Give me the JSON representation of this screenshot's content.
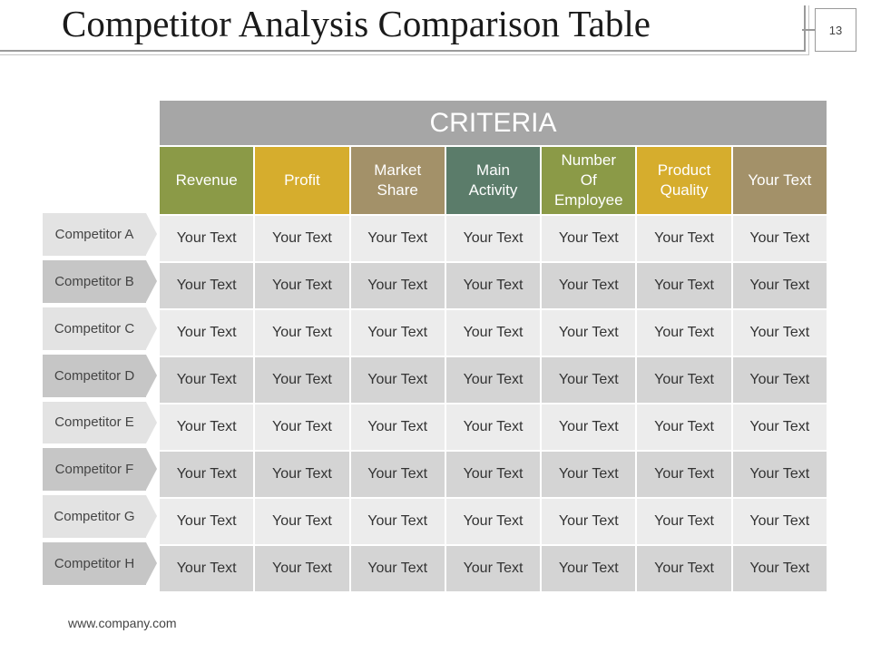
{
  "slide": {
    "title": "Competitor Analysis Comparison Table",
    "page_number": "13",
    "footer": "www.company.com"
  },
  "table": {
    "group_header": "CRITERIA",
    "columns": [
      {
        "label": "Revenue",
        "color": "#8b9a47"
      },
      {
        "label": "Profit",
        "color": "#d6ad2d"
      },
      {
        "label": "Market\nShare",
        "color": "#a39169"
      },
      {
        "label": "Main\nActivity",
        "color": "#5b7c6a"
      },
      {
        "label": "Number\nOf\nEmployee",
        "color": "#8b9a47"
      },
      {
        "label": "Product\nQuality",
        "color": "#d6ad2d"
      },
      {
        "label": "Your Text",
        "color": "#a39169"
      }
    ],
    "rows": [
      {
        "competitor": "Competitor A",
        "cells": [
          "Your Text",
          "Your Text",
          "Your Text",
          "Your Text",
          "Your Text",
          "Your Text",
          "Your Text"
        ]
      },
      {
        "competitor": "Competitor B",
        "cells": [
          "Your Text",
          "Your Text",
          "Your Text",
          "Your Text",
          "Your Text",
          "Your Text",
          "Your Text"
        ]
      },
      {
        "competitor": "Competitor C",
        "cells": [
          "Your Text",
          "Your Text",
          "Your Text",
          "Your Text",
          "Your Text",
          "Your Text",
          "Your Text"
        ]
      },
      {
        "competitor": "Competitor D",
        "cells": [
          "Your Text",
          "Your Text",
          "Your Text",
          "Your Text",
          "Your Text",
          "Your Text",
          "Your Text"
        ]
      },
      {
        "competitor": "Competitor E",
        "cells": [
          "Your Text",
          "Your Text",
          "Your Text",
          "Your Text",
          "Your Text",
          "Your Text",
          "Your Text"
        ]
      },
      {
        "competitor": "Competitor F",
        "cells": [
          "Your Text",
          "Your Text",
          "Your Text",
          "Your Text",
          "Your Text",
          "Your Text",
          "Your Text"
        ]
      },
      {
        "competitor": "Competitor G",
        "cells": [
          "Your Text",
          "Your Text",
          "Your Text",
          "Your Text",
          "Your Text",
          "Your Text",
          "Your Text"
        ]
      },
      {
        "competitor": "Competitor H",
        "cells": [
          "Your Text",
          "Your Text",
          "Your Text",
          "Your Text",
          "Your Text",
          "Your Text",
          "Your Text"
        ]
      }
    ]
  }
}
